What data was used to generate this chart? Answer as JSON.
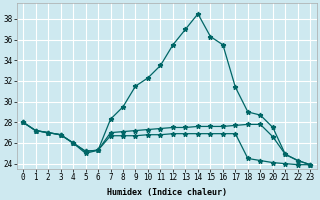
{
  "title": "",
  "xlabel": "Humidex (Indice chaleur)",
  "background_color": "#cee9f0",
  "grid_color": "#ffffff",
  "line_color": "#006666",
  "xlim": [
    -0.5,
    23.5
  ],
  "ylim": [
    23.5,
    39.5
  ],
  "yticks": [
    24,
    26,
    28,
    30,
    32,
    34,
    36,
    38
  ],
  "xticks": [
    0,
    1,
    2,
    3,
    4,
    5,
    6,
    7,
    8,
    9,
    10,
    11,
    12,
    13,
    14,
    15,
    16,
    17,
    18,
    19,
    20,
    21,
    22,
    23
  ],
  "xtick_labels": [
    "0",
    "1",
    "2",
    "3",
    "4",
    "5",
    "6",
    "7",
    "8",
    "9",
    "10",
    "11",
    "12",
    "13",
    "14",
    "15",
    "16",
    "17",
    "18",
    "19",
    "20",
    "21",
    "22",
    "23"
  ],
  "line1_x": [
    0,
    1,
    2,
    3,
    4,
    5,
    6,
    7,
    8,
    9,
    10,
    11,
    12,
    13,
    14,
    15,
    16,
    17,
    18,
    19,
    20,
    21,
    22,
    23
  ],
  "line1_y": [
    28.0,
    27.2,
    27.0,
    26.8,
    26.0,
    25.0,
    25.3,
    28.3,
    29.5,
    31.5,
    32.3,
    33.5,
    35.5,
    37.0,
    38.5,
    36.3,
    35.5,
    31.4,
    29.0,
    28.7,
    27.5,
    24.9,
    24.3,
    23.9
  ],
  "line2_x": [
    0,
    1,
    2,
    3,
    4,
    5,
    6,
    7,
    8,
    9,
    10,
    11,
    12,
    13,
    14,
    15,
    16,
    17,
    18,
    19,
    20,
    21,
    22,
    23
  ],
  "line2_y": [
    28.0,
    27.2,
    27.0,
    26.8,
    26.0,
    25.2,
    25.3,
    27.0,
    27.1,
    27.2,
    27.3,
    27.4,
    27.5,
    27.5,
    27.6,
    27.6,
    27.6,
    27.7,
    27.8,
    27.8,
    26.6,
    24.9,
    24.3,
    23.9
  ],
  "line3_x": [
    0,
    1,
    2,
    3,
    4,
    5,
    6,
    7,
    8,
    9,
    10,
    11,
    12,
    13,
    14,
    15,
    16,
    17,
    18,
    19,
    20,
    21,
    22,
    23
  ],
  "line3_y": [
    28.0,
    27.2,
    27.0,
    26.8,
    26.0,
    25.2,
    25.3,
    26.7,
    26.7,
    26.7,
    26.8,
    26.8,
    26.9,
    26.9,
    26.9,
    26.9,
    26.9,
    26.9,
    24.5,
    24.3,
    24.1,
    24.0,
    23.9,
    23.9
  ]
}
